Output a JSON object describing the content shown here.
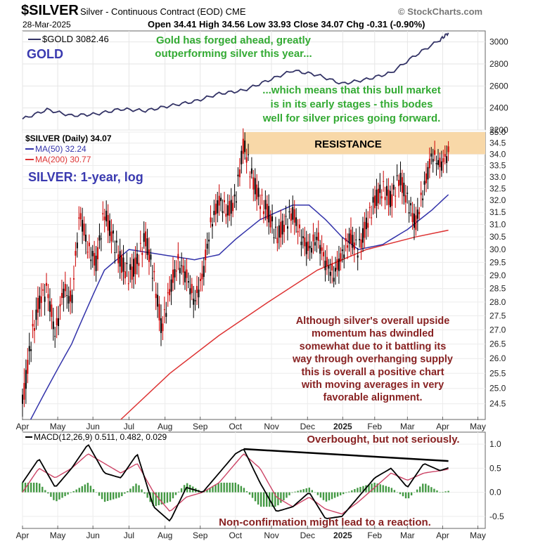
{
  "header": {
    "symbol": "$SILVER",
    "description": "Silver - Continuous Contract (EOD) CME",
    "date": "28-Mar-2025",
    "ohlc": "Open 34.41  High 34.56  Low 33.93  Close 34.07  Chg -0.31 (-0.90%)",
    "brand": "© StockCharts.com"
  },
  "colors": {
    "price_up": "#000000",
    "price_down": "#cc0000",
    "ma50": "#3333aa",
    "ma200": "#dd3333",
    "gold": "#333366",
    "resistance_zone": "#f8d8a8",
    "annotation_green": "#33aa33",
    "annotation_dark": "#882222",
    "macd_line": "#000000",
    "signal_line": "#cc4466",
    "histogram": "#449944"
  },
  "chart_data": [
    {
      "type": "line",
      "panel": "gold",
      "legend": "$GOLD 3082.46",
      "panel_label": "GOLD",
      "ylim": [
        2200,
        3100
      ],
      "y_ticks": [
        "3000",
        "2800",
        "2600",
        "2400",
        "2200"
      ],
      "y_tick_values": [
        3000,
        2800,
        2600,
        2400,
        2200
      ],
      "annotations": [
        "Gold has forged ahead, greatly",
        "outperforming silver this year...",
        "...which means that this bull market",
        "is in its early stages - this bodes",
        "well for silver prices going forward."
      ],
      "x": [
        0,
        3,
        6,
        9,
        12,
        15,
        18,
        21,
        24,
        27,
        30,
        33,
        36,
        39,
        42,
        45,
        48,
        51,
        52
      ],
      "values": [
        2300,
        2385,
        2330,
        2345,
        2390,
        2375,
        2420,
        2460,
        2530,
        2560,
        2650,
        2740,
        2700,
        2620,
        2660,
        2720,
        2880,
        3020,
        3082
      ]
    },
    {
      "type": "candlestick",
      "panel": "price",
      "scale": "log",
      "legend": "$SILVER (Daily) 34.07",
      "ma50_legend": "MA(50) 32.24",
      "ma200_legend": "MA(200) 30.77",
      "panel_label": "SILVER: 1-year, log",
      "resistance_label": "RESISTANCE",
      "resistance_range": [
        34.0,
        35.0
      ],
      "ylim": [
        24.0,
        35.0
      ],
      "y_ticks": [
        "35.0",
        "34.5",
        "34.0",
        "33.5",
        "33.0",
        "32.5",
        "32.0",
        "31.5",
        "31.0",
        "30.5",
        "30.0",
        "29.5",
        "29.0",
        "28.5",
        "28.0",
        "27.5",
        "27.0",
        "26.5",
        "26.0",
        "25.5",
        "25.0",
        "24.5"
      ],
      "y_tick_values": [
        35.0,
        34.5,
        34.0,
        33.5,
        33.0,
        32.5,
        32.0,
        31.5,
        31.0,
        30.5,
        30.0,
        29.5,
        29.0,
        28.5,
        28.0,
        27.5,
        27.0,
        26.5,
        26.0,
        25.5,
        25.0,
        24.5
      ],
      "annotation": [
        "Although silver's overall upside",
        "momentum has dwindled",
        "somewhat due to it battling its",
        "way through overhanging supply",
        "this is overall a positive chart",
        "with moving averages in very",
        "favorable alignment."
      ],
      "x": [
        0,
        1,
        2,
        3,
        4,
        5,
        6,
        7,
        8,
        9,
        10,
        11,
        12,
        13,
        14,
        15,
        16,
        17,
        18,
        19,
        20,
        21,
        22,
        23,
        24,
        25,
        26,
        27,
        28,
        29,
        30,
        31,
        32,
        33,
        34,
        35,
        36,
        37,
        38,
        39,
        40,
        41,
        42,
        43,
        44,
        45,
        46,
        47,
        48,
        49,
        50,
        51,
        52
      ],
      "close": [
        24.5,
        26.5,
        28.0,
        28.5,
        26.8,
        28.5,
        28.0,
        31.5,
        30.0,
        29.5,
        31.5,
        30.5,
        29.5,
        29.0,
        29.5,
        30.5,
        29.0,
        27.0,
        28.5,
        29.5,
        29.0,
        28.0,
        29.0,
        31.0,
        32.0,
        31.5,
        32.0,
        34.5,
        33.0,
        32.0,
        31.5,
        30.5,
        31.0,
        31.5,
        30.5,
        30.0,
        30.5,
        29.5,
        29.0,
        29.8,
        30.5,
        30.0,
        31.0,
        32.0,
        32.5,
        32.0,
        33.0,
        32.0,
        31.0,
        32.5,
        34.0,
        33.5,
        34.07
      ],
      "ma50_x": [
        1,
        6,
        10,
        13,
        17,
        21,
        24,
        26,
        29,
        31,
        33,
        35,
        37,
        39,
        41,
        44,
        47,
        50,
        52
      ],
      "ma50": [
        24.0,
        26.5,
        29.2,
        30.0,
        29.8,
        29.6,
        29.8,
        30.4,
        31.2,
        31.5,
        31.8,
        31.8,
        31.2,
        30.5,
        30.0,
        30.2,
        30.8,
        31.6,
        32.24
      ],
      "ma200_x": [
        12,
        18,
        24,
        30,
        36,
        42,
        48,
        52
      ],
      "ma200": [
        24.0,
        25.5,
        26.8,
        28.0,
        29.2,
        30.0,
        30.5,
        30.77
      ]
    },
    {
      "type": "macd",
      "panel": "macd",
      "legend": "MACD(12,26,9) 0.511, 0.482, 0.029",
      "ylim": [
        -0.75,
        1.25
      ],
      "y_ticks": [
        "1.0",
        "0.5",
        "0.0",
        "-0.5"
      ],
      "y_tick_values": [
        1.0,
        0.5,
        0.0,
        -0.5
      ],
      "annotations": [
        "Overbought, but not seriously.",
        "Non-confirmation might lead to a reaction."
      ],
      "trendline_x": [
        27,
        52
      ],
      "trendline_y": [
        0.9,
        0.65
      ],
      "x": [
        0,
        2,
        4,
        6,
        8,
        10,
        12,
        14,
        16,
        18,
        20,
        22,
        24,
        26,
        27,
        29,
        31,
        33,
        35,
        37,
        39,
        41,
        43,
        45,
        47,
        49,
        51,
        52
      ],
      "macd": [
        0.2,
        0.7,
        0.1,
        0.5,
        1.0,
        0.4,
        0.3,
        0.8,
        -0.3,
        -0.6,
        0.1,
        0.0,
        0.4,
        0.8,
        0.9,
        0.2,
        -0.4,
        -0.3,
        0.0,
        -0.55,
        -0.5,
        -0.1,
        0.3,
        0.5,
        0.1,
        0.6,
        0.45,
        0.51
      ],
      "signal": [
        0.0,
        0.5,
        0.3,
        0.5,
        0.8,
        0.6,
        0.4,
        0.6,
        0.0,
        -0.4,
        -0.1,
        0.0,
        0.2,
        0.6,
        0.8,
        0.5,
        -0.1,
        -0.3,
        -0.1,
        -0.35,
        -0.45,
        -0.2,
        0.1,
        0.4,
        0.25,
        0.4,
        0.45,
        0.48
      ]
    }
  ],
  "x_axis": {
    "months": [
      "Apr",
      "May",
      "Jun",
      "Jul",
      "Aug",
      "Sep",
      "Oct",
      "Nov",
      "Dec",
      "2025",
      "Feb",
      "Mar",
      "Apr",
      "May"
    ],
    "month_x": [
      0,
      4.3,
      8.6,
      13,
      17.4,
      21.7,
      26,
      30.4,
      34.8,
      39.1,
      43,
      47,
      51.3,
      55.6
    ]
  }
}
